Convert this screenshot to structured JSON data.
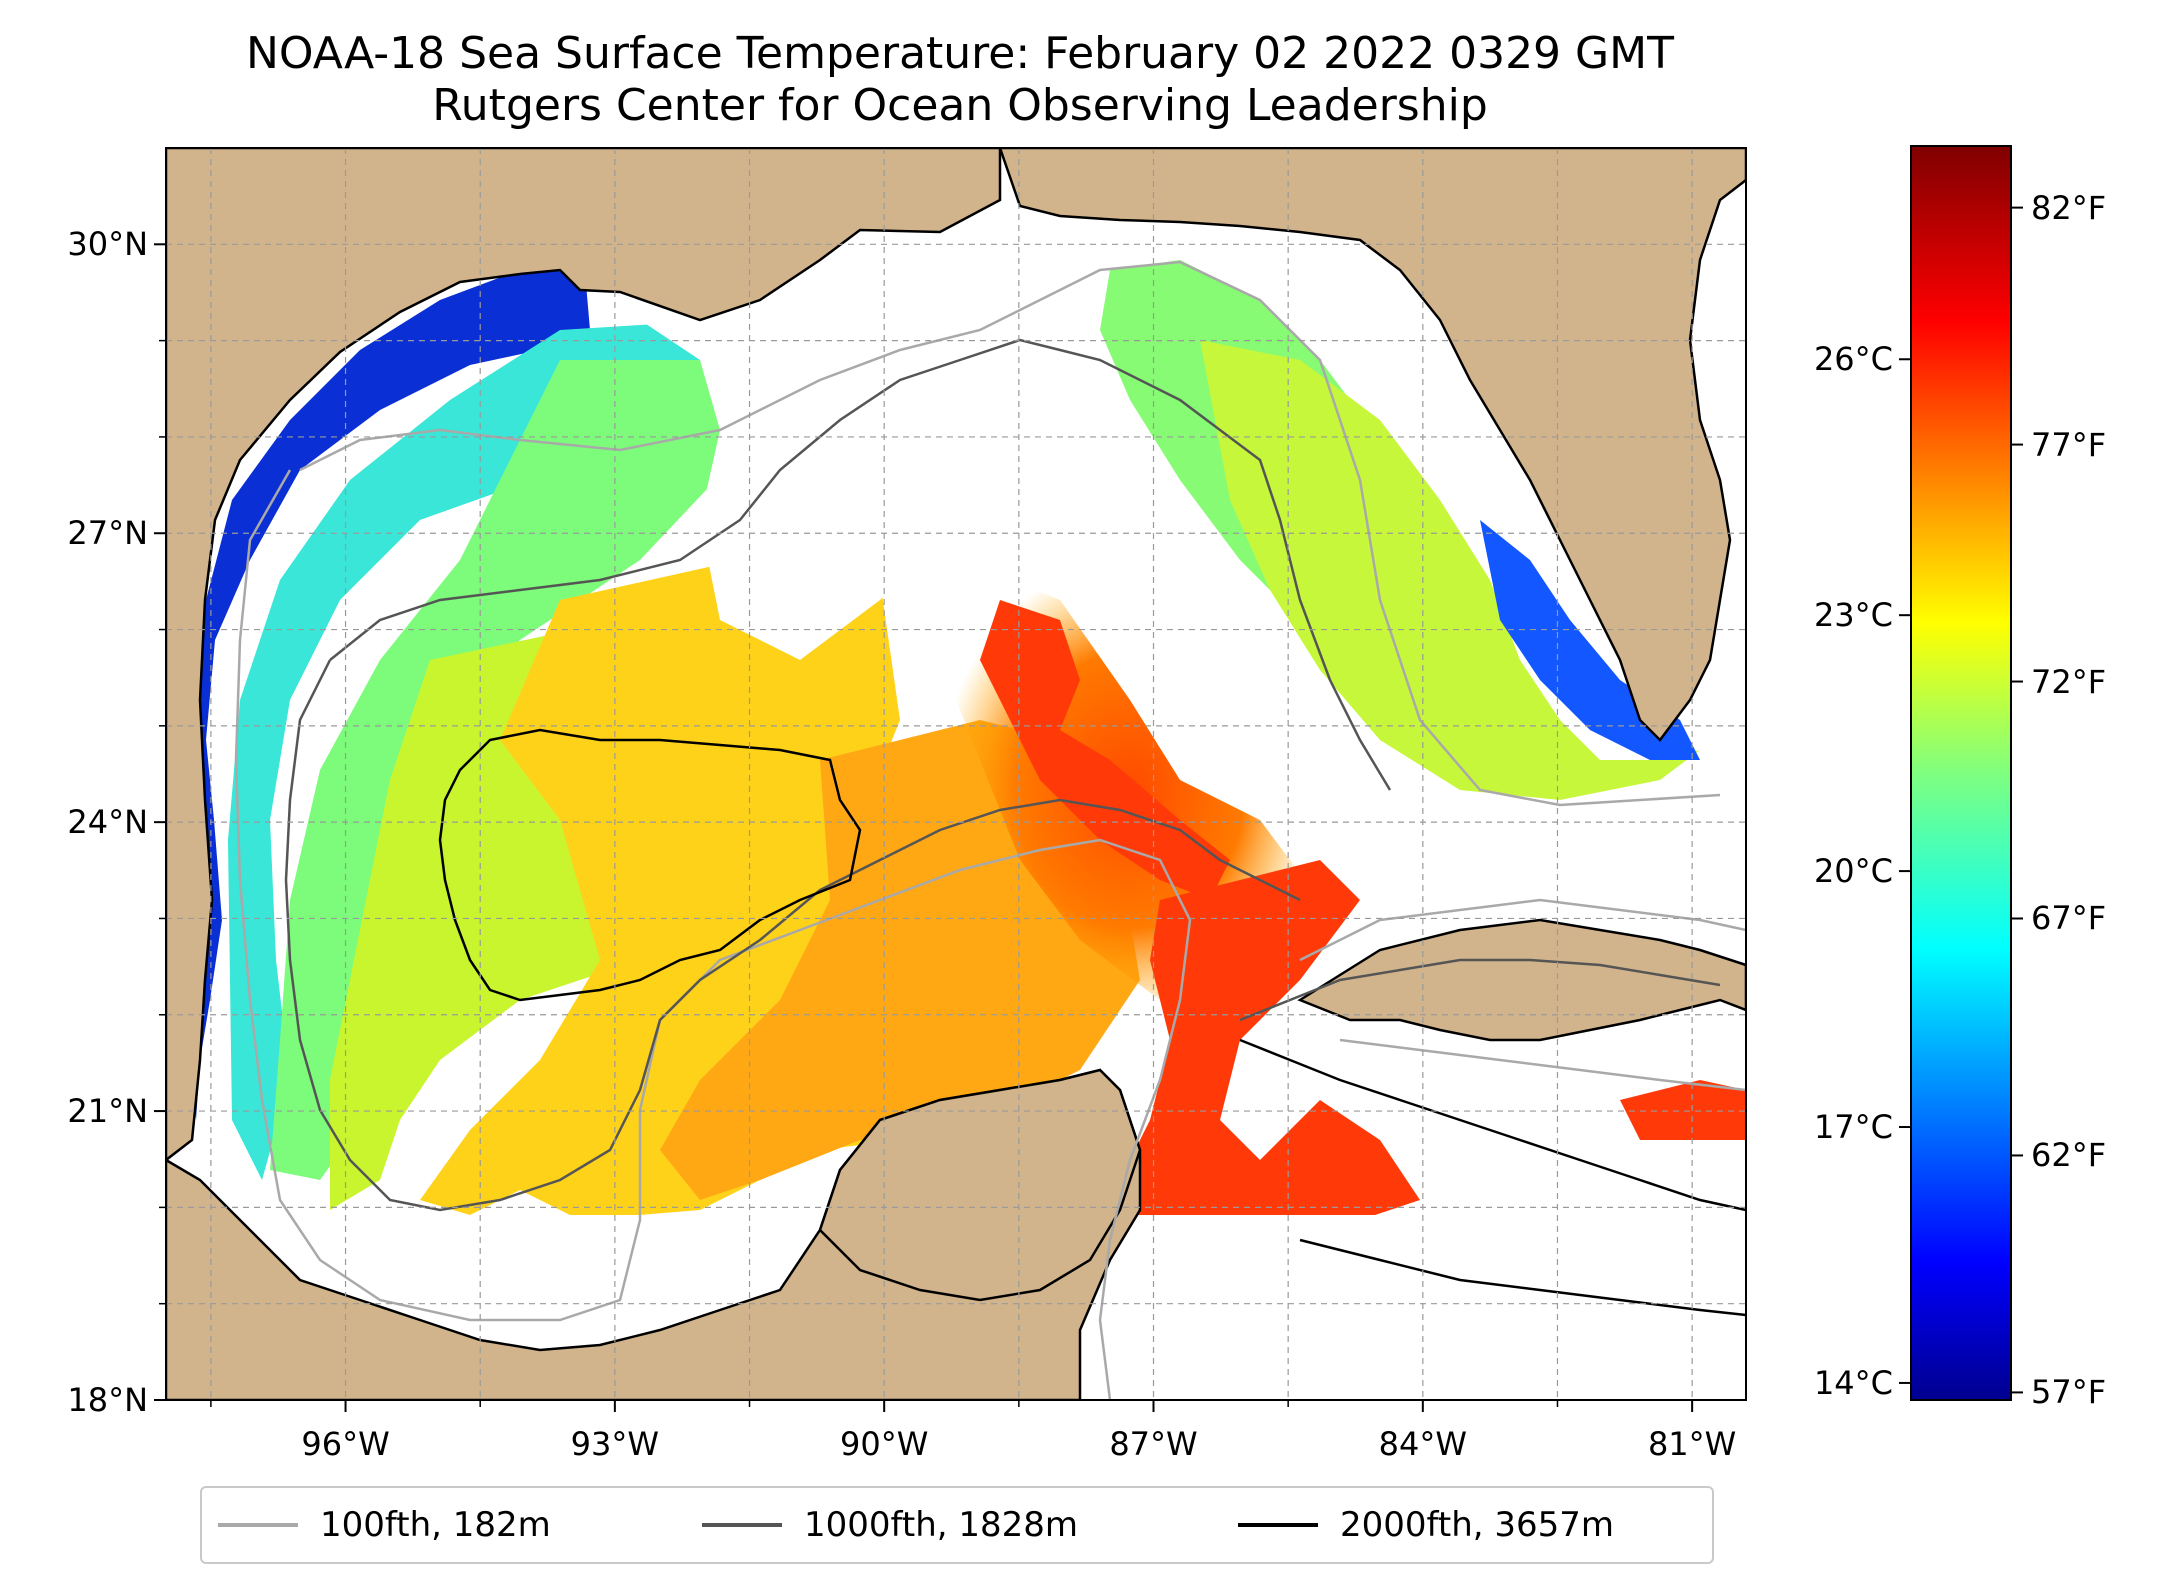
{
  "title": {
    "line1": "NOAA-18 Sea Surface Temperature: February 02 2022 0329 GMT",
    "line2": "Rutgers Center for Ocean Observing Leadership"
  },
  "map": {
    "lon_range": [
      -98,
      -80.4
    ],
    "lat_range": [
      18,
      31
    ],
    "land_color": "#d2b48c",
    "ocean_color": "#ffffff",
    "coast_color": "#000000",
    "gridlines": true,
    "lon_ticks": [
      -96,
      -93,
      -90,
      -87,
      -84,
      -81
    ],
    "lon_tick_labels": [
      "96°W",
      "93°W",
      "90°W",
      "87°W",
      "84°W",
      "81°W"
    ],
    "lat_ticks": [
      18,
      21,
      24,
      27,
      30
    ],
    "lat_tick_labels": [
      "18°N",
      "21°N",
      "24°N",
      "27°N",
      "30°N"
    ],
    "data_cutoff_lat": 20
  },
  "colorbar": {
    "colormap": "jet",
    "celsius_ticks": [
      14,
      17,
      20,
      23,
      26
    ],
    "celsius_labels": [
      "14°C",
      "17°C",
      "20°C",
      "23°C",
      "26°C"
    ],
    "fahrenheit_ticks": [
      57,
      62,
      67,
      72,
      77,
      82
    ],
    "fahrenheit_labels": [
      "57°F",
      "62°F",
      "67°F",
      "72°F",
      "77°F",
      "82°F"
    ],
    "range_c": [
      13.8,
      28.5
    ]
  },
  "legend": {
    "items": [
      {
        "label": "100fth, 182m",
        "color": "#a9a9a9"
      },
      {
        "label": "1000fth, 1828m",
        "color": "#555555"
      },
      {
        "label": "2000fth, 3657m",
        "color": "#000000"
      }
    ]
  }
}
